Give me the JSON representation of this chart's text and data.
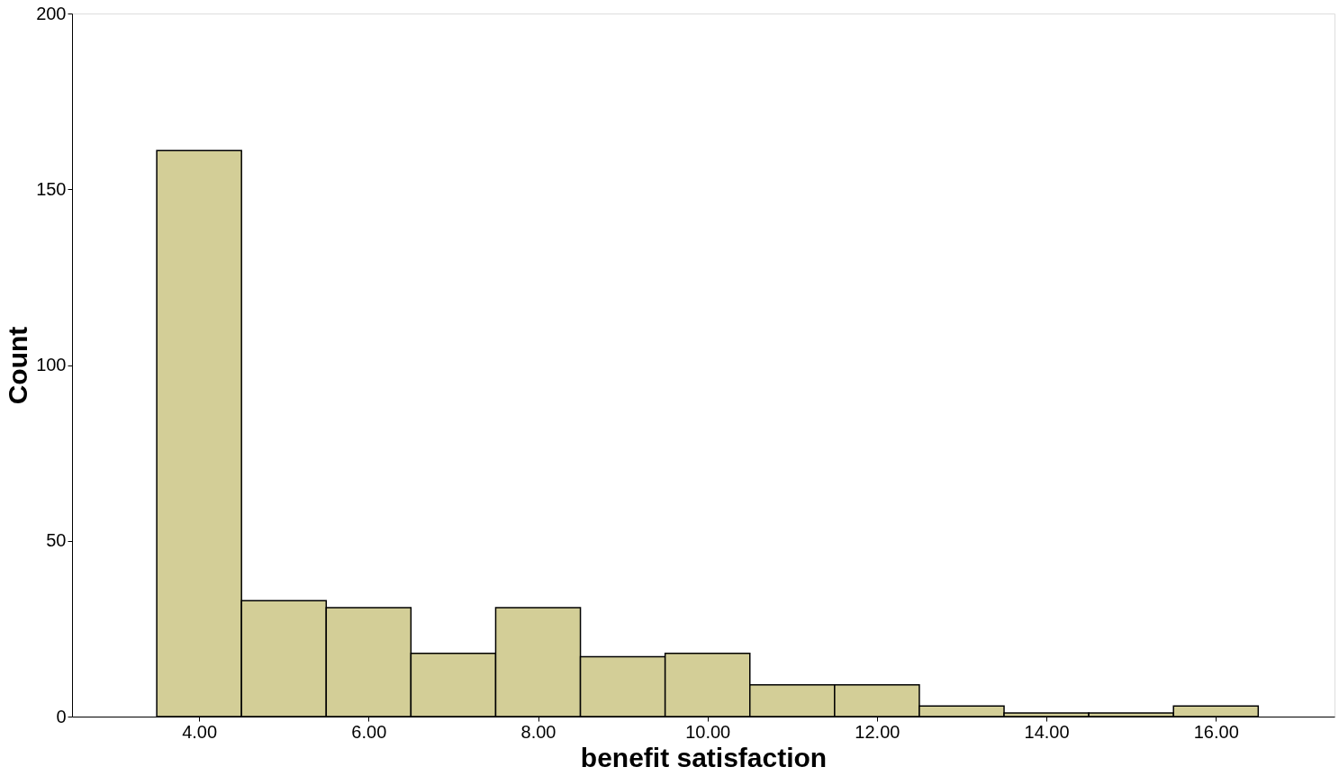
{
  "chart_data": {
    "type": "histogram",
    "xlabel": "benefit satisfaction",
    "ylabel": "Count",
    "bins": [
      3.5,
      4.5,
      5.5,
      6.5,
      7.5,
      8.5,
      9.5,
      10.5,
      11.5,
      12.5,
      13.5,
      14.5,
      15.5,
      16.5
    ],
    "values": [
      161,
      33,
      31,
      18,
      31,
      17,
      18,
      9,
      9,
      3,
      1,
      1,
      3
    ],
    "color": "#d3ce97",
    "xlim": [
      2.5,
      17.4
    ],
    "xticks": [
      {
        "value": 4,
        "label": "4.00"
      },
      {
        "value": 6,
        "label": "6.00"
      },
      {
        "value": 8,
        "label": "8.00"
      },
      {
        "value": 10,
        "label": "10.00"
      },
      {
        "value": 12,
        "label": "12.00"
      },
      {
        "value": 14,
        "label": "14.00"
      },
      {
        "value": 16,
        "label": "16.00"
      }
    ],
    "ylim": [
      0,
      200
    ],
    "yticks": [
      0,
      50,
      100,
      150,
      200
    ]
  }
}
